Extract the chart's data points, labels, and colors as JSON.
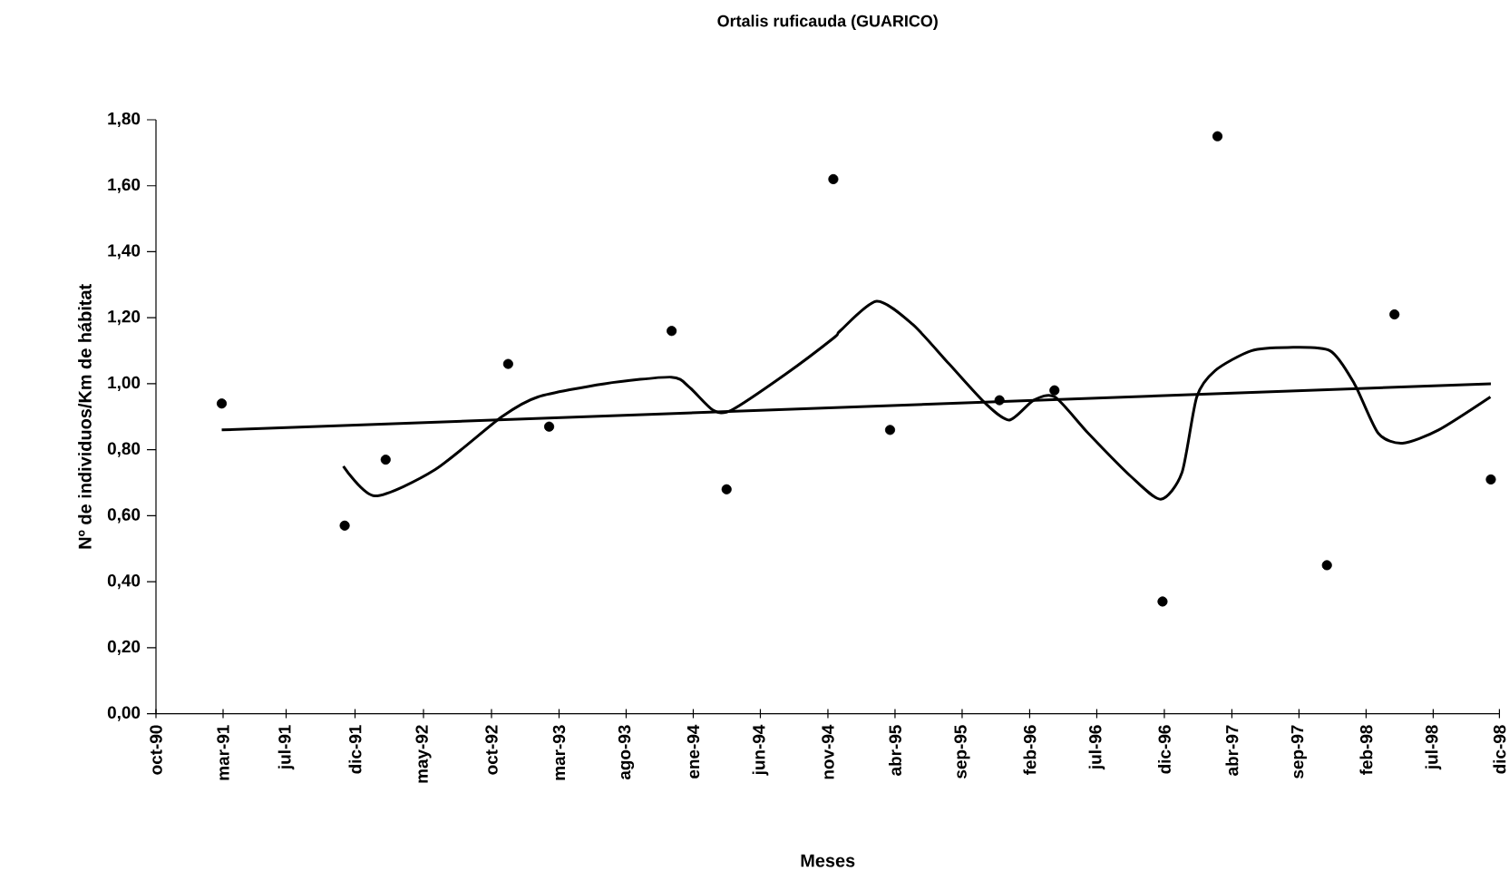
{
  "chart_data": {
    "type": "scatter",
    "title": "Ortalis ruficauda (GUARICO)",
    "xlabel": "Meses",
    "ylabel": "Nº de individuos/Km de hábitat",
    "xlim": [
      "1990-10-15",
      "1998-12-15"
    ],
    "ylim": [
      0,
      1.8
    ],
    "xticks": [
      {
        "value": "1990-10-15",
        "label": "oct-90"
      },
      {
        "value": "1991-03-13",
        "label": "mar-91"
      },
      {
        "value": "1991-07-31",
        "label": "jul-91"
      },
      {
        "value": "1991-12-31",
        "label": "dic-91"
      },
      {
        "value": "1992-05-31",
        "label": "may-92"
      },
      {
        "value": "1992-10-29",
        "label": "oct-92"
      },
      {
        "value": "1993-03-28",
        "label": "mar-93"
      },
      {
        "value": "1993-08-24",
        "label": "ago-93"
      },
      {
        "value": "1994-01-20",
        "label": "ene-94"
      },
      {
        "value": "1994-06-18",
        "label": "jun-94"
      },
      {
        "value": "1994-11-15",
        "label": "nov-94"
      },
      {
        "value": "1995-04-13",
        "label": "abr-95"
      },
      {
        "value": "1995-09-09",
        "label": "sep-95"
      },
      {
        "value": "1996-02-06",
        "label": "feb-96"
      },
      {
        "value": "1996-07-04",
        "label": "jul-96"
      },
      {
        "value": "1996-12-01",
        "label": "dic-96"
      },
      {
        "value": "1997-04-30",
        "label": "abr-97"
      },
      {
        "value": "1997-09-26",
        "label": "sep-97"
      },
      {
        "value": "1998-02-22",
        "label": "feb-98"
      },
      {
        "value": "1998-07-21",
        "label": "jul-98"
      },
      {
        "value": "1998-12-15",
        "label": "dic-98"
      }
    ],
    "yticks": [
      {
        "value": 0,
        "label": "0,00"
      },
      {
        "value": 0.2,
        "label": "0,20"
      },
      {
        "value": 0.4,
        "label": "0,40"
      },
      {
        "value": 0.6,
        "label": "0,60"
      },
      {
        "value": 0.8,
        "label": "0,80"
      },
      {
        "value": 1.0,
        "label": "1,00"
      },
      {
        "value": 1.2,
        "label": "1,20"
      },
      {
        "value": 1.4,
        "label": "1,40"
      },
      {
        "value": 1.6,
        "label": "1,60"
      },
      {
        "value": 1.8,
        "label": "1,80"
      }
    ],
    "grid": false,
    "series": [
      {
        "color": "#000000",
        "marker": "circle",
        "x": [
          "1991-03-10",
          "1991-12-08",
          "1992-03-08",
          "1992-12-05",
          "1993-03-06",
          "1993-12-03",
          "1994-04-04",
          "1994-11-27",
          "1995-04-02",
          "1995-12-01",
          "1996-04-01",
          "1996-11-27",
          "1997-03-29",
          "1997-11-27",
          "1998-04-26",
          "1998-11-26"
        ],
        "values": [
          0.94,
          0.57,
          0.77,
          1.06,
          0.87,
          1.16,
          0.68,
          1.62,
          0.86,
          0.95,
          0.98,
          0.34,
          1.75,
          0.45,
          1.21,
          0.71
        ]
      },
      {
        "type": "line",
        "color": "#000000",
        "marker": "none",
        "line_style": "solid",
        "x": [
          "1991-12-05",
          "1992-02-13",
          "1992-06-26",
          "1992-11-21",
          "1993-02-09",
          "1993-07-07",
          "1993-12-02",
          "1994-01-11",
          "1994-03-05",
          "1994-04-15",
          "1994-08-14",
          "1994-11-29",
          "1994-12-12",
          "1995-03-03",
          "1995-05-22",
          "1995-08-11",
          "1995-10-31",
          "1995-12-23",
          "1996-02-15",
          "1996-04-02",
          "1996-06-15",
          "1996-09-17",
          "1996-11-23",
          "1997-01-09",
          "1997-02-11",
          "1997-03-24",
          "1997-06-12",
          "1997-09-01",
          "1997-12-04",
          "1998-01-27",
          "1998-03-21",
          "1998-05-14",
          "1998-08-02",
          "1998-11-25"
        ],
        "values": [
          0.75,
          0.66,
          0.74,
          0.9,
          0.96,
          1.0,
          1.02,
          0.99,
          0.92,
          0.92,
          1.03,
          1.14,
          1.16,
          1.25,
          1.18,
          1.06,
          0.94,
          0.89,
          0.95,
          0.96,
          0.85,
          0.72,
          0.65,
          0.73,
          0.96,
          1.04,
          1.1,
          1.11,
          1.1,
          1.0,
          0.85,
          0.82,
          0.86,
          0.96
        ]
      },
      {
        "type": "line",
        "color": "#000000",
        "marker": "none",
        "line_style": "solid",
        "x": [
          "1991-03-10",
          "1998-11-26"
        ],
        "values": [
          0.86,
          1.0
        ]
      }
    ]
  }
}
